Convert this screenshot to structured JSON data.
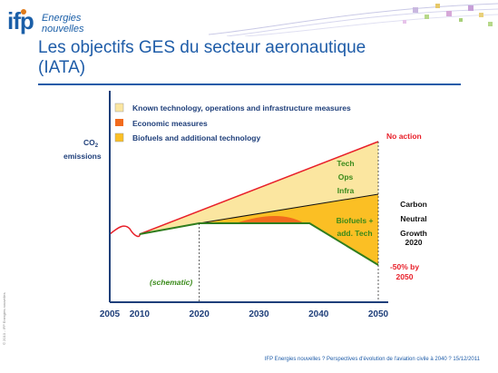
{
  "header": {
    "logo_text": "ifp",
    "logo_sub_1": "Energies",
    "logo_sub_2": "nouvelles",
    "title_line_1": "Les objectifs GES du secteur aeronautique",
    "title_line_2": "(IATA)"
  },
  "footer": {
    "text": "IFP Energies nouvelles ? Perspectives d'évolution de l'aviation civile à 2040 ? 15/12/2011",
    "side_text": "© 2010 - IFP Energies nouvelles"
  },
  "colors": {
    "tech_ops_infra": "#fbe6a0",
    "economic": "#f26b1d",
    "biofuels": "#fbbf24",
    "no_action_line": "#e8202a",
    "carbon_neutral_line": "#111111",
    "target_line": "#2f7d1e",
    "axis": "#1f3f7a"
  },
  "chart_data": {
    "type": "area",
    "schematic": true,
    "ylabel_1": "CO",
    "ylabel_sub": "2",
    "ylabel_2": "emissions",
    "x_ticks": [
      "2005",
      "2010",
      "2020",
      "2030",
      "2040",
      "2050"
    ],
    "x_tick_values": [
      2005,
      2010,
      2020,
      2030,
      2040,
      2050
    ],
    "xlim": [
      2005,
      2050
    ],
    "note": "(schematic)",
    "legend": [
      {
        "label": "Known technology, operations and infrastructure measures",
        "color": "#fbe6a0"
      },
      {
        "label": "Economic measures",
        "color": "#f26b1d"
      },
      {
        "label": "Biofuels and additional technology",
        "color": "#fbbf24"
      }
    ],
    "annotations": {
      "no_action": "No action",
      "tech": "Tech",
      "ops": "Ops",
      "infra": "Infra",
      "biofuels_1": "Biofuels +",
      "biofuels_2": "add. Tech",
      "carbon_1": "Carbon",
      "carbon_2": "Neutral",
      "carbon_3": "Growth",
      "carbon_4": "2020",
      "target_1": "-50% by",
      "target_2": "2050"
    }
  }
}
